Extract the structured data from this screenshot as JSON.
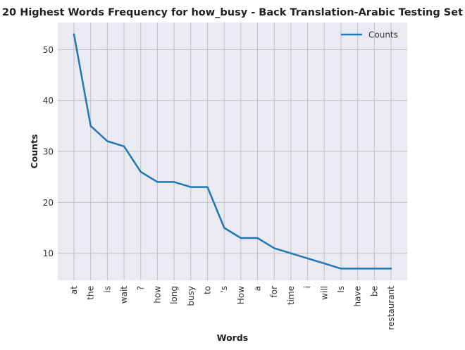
{
  "chart_data": {
    "type": "line",
    "title": "20 Highest Words Frequency for how_busy - Back Translation-Arabic Testing Set",
    "xlabel": "Words",
    "ylabel": "Counts",
    "categories": [
      "at",
      "the",
      "is",
      "wait",
      "?",
      "how",
      "long",
      "busy",
      "to",
      "'s",
      "How",
      "a",
      "for",
      "time",
      "i",
      "will",
      "Is",
      "have",
      "be",
      "restaurant"
    ],
    "series": [
      {
        "name": "Counts",
        "values": [
          53,
          35,
          32,
          31,
          26,
          24,
          24,
          23,
          23,
          15,
          13,
          13,
          11,
          10,
          9,
          8,
          7,
          7,
          7,
          7
        ],
        "color": "#1f77b4"
      }
    ],
    "yticks": [
      10,
      20,
      30,
      40,
      50
    ],
    "ylim": [
      4.7,
      55.3
    ],
    "grid": true,
    "legend": "top-right",
    "background_color": "#eaeaf2",
    "grid_color": "#c0c0c0"
  }
}
